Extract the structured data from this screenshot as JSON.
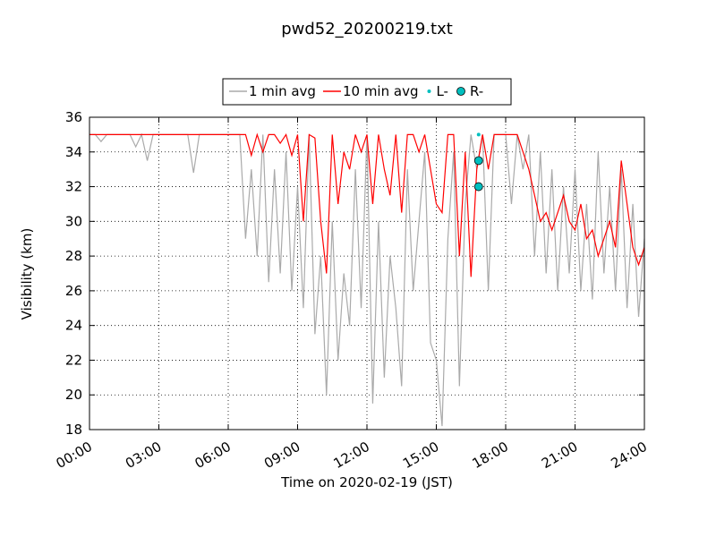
{
  "chart_data": {
    "type": "line",
    "title": "pwd52_20200219.txt",
    "xlabel": "Time on 2020-02-19 (JST)",
    "ylabel": "Visibility (km)",
    "x": [
      0,
      0.25,
      0.5,
      0.75,
      1,
      1.25,
      1.5,
      1.75,
      2,
      2.25,
      2.5,
      2.75,
      3,
      3.25,
      3.5,
      3.75,
      4,
      4.25,
      4.5,
      4.75,
      5,
      5.25,
      5.5,
      5.75,
      6,
      6.25,
      6.5,
      6.75,
      7,
      7.25,
      7.5,
      7.75,
      8,
      8.25,
      8.5,
      8.75,
      9,
      9.25,
      9.5,
      9.75,
      10,
      10.25,
      10.5,
      10.75,
      11,
      11.25,
      11.5,
      11.75,
      12,
      12.25,
      12.5,
      12.75,
      13,
      13.25,
      13.5,
      13.75,
      14,
      14.25,
      14.5,
      14.75,
      15,
      15.25,
      15.5,
      15.75,
      16,
      16.25,
      16.5,
      16.75,
      17,
      17.25,
      17.5,
      17.75,
      18,
      18.25,
      18.5,
      18.75,
      19,
      19.25,
      19.5,
      19.75,
      20,
      20.25,
      20.5,
      20.75,
      21,
      21.25,
      21.5,
      21.75,
      22,
      22.25,
      22.5,
      22.75,
      23,
      23.25,
      23.5,
      23.75,
      24
    ],
    "series": [
      {
        "name": "1 min avg",
        "color": "#aaaaaa",
        "marker": "line",
        "values": [
          35,
          35,
          34.6,
          35,
          35,
          35,
          35,
          35,
          34.3,
          35,
          33.5,
          35,
          35,
          35,
          35,
          35,
          35,
          35,
          32.8,
          35,
          35,
          35,
          35,
          35,
          35,
          35,
          35,
          29,
          33,
          28,
          35,
          26.5,
          33,
          27,
          34,
          26,
          32,
          25,
          35,
          23.5,
          28,
          20,
          30,
          22,
          27,
          24,
          33,
          25,
          35,
          19.5,
          30,
          21,
          28,
          25,
          20.5,
          33,
          26,
          30,
          34,
          23,
          22,
          18.2,
          29,
          34,
          20.5,
          31,
          35,
          33,
          35,
          26,
          35,
          35,
          35,
          31,
          35,
          33,
          35,
          28,
          34,
          27,
          33,
          26,
          32,
          27,
          33,
          26,
          31,
          25.5,
          34,
          27,
          32,
          26,
          33,
          25,
          31,
          24.5,
          29
        ]
      },
      {
        "name": "10 min avg",
        "color": "#ff0000",
        "marker": "line",
        "values": [
          35,
          35,
          35,
          35,
          35,
          35,
          35,
          35,
          35,
          35,
          35,
          35,
          35,
          35,
          35,
          35,
          35,
          35,
          35,
          35,
          35,
          35,
          35,
          35,
          35,
          35,
          35,
          35,
          33.8,
          35,
          34,
          35,
          35,
          34.5,
          35,
          33.8,
          35,
          30,
          35,
          34.8,
          30,
          27,
          35,
          31,
          34,
          33,
          35,
          34,
          35,
          31,
          35,
          33,
          31.5,
          35,
          30.5,
          35,
          35,
          34,
          35,
          33,
          31,
          30.5,
          35,
          35,
          28,
          34,
          26.8,
          33,
          35,
          33,
          35,
          35,
          35,
          35,
          35,
          34,
          33,
          31.5,
          30,
          30.5,
          29.5,
          30.5,
          31.5,
          30,
          29.5,
          31,
          29,
          29.5,
          28,
          29,
          30,
          28.5,
          33.5,
          31,
          28.5,
          27.5,
          28.5
        ]
      },
      {
        "name": "L-",
        "color": "#00bfbf",
        "marker": "dot",
        "x": [
          16.83
        ],
        "values": [
          35
        ]
      },
      {
        "name": "R-",
        "color": "#00bfbf",
        "marker": "circle",
        "x": [
          16.83,
          16.83
        ],
        "values": [
          33.5,
          32
        ]
      }
    ],
    "xlim": [
      0,
      24
    ],
    "xticks": [
      {
        "value": 0,
        "label": "00:00"
      },
      {
        "value": 3,
        "label": "03:00"
      },
      {
        "value": 6,
        "label": "06:00"
      },
      {
        "value": 9,
        "label": "09:00"
      },
      {
        "value": 12,
        "label": "12:00"
      },
      {
        "value": 15,
        "label": "15:00"
      },
      {
        "value": 18,
        "label": "18:00"
      },
      {
        "value": 21,
        "label": "21:00"
      },
      {
        "value": 24,
        "label": "24:00"
      }
    ],
    "ylim": [
      18,
      36
    ],
    "yticks": [
      18,
      20,
      22,
      24,
      26,
      28,
      30,
      32,
      34,
      36
    ],
    "grid": true,
    "legend": "top"
  }
}
